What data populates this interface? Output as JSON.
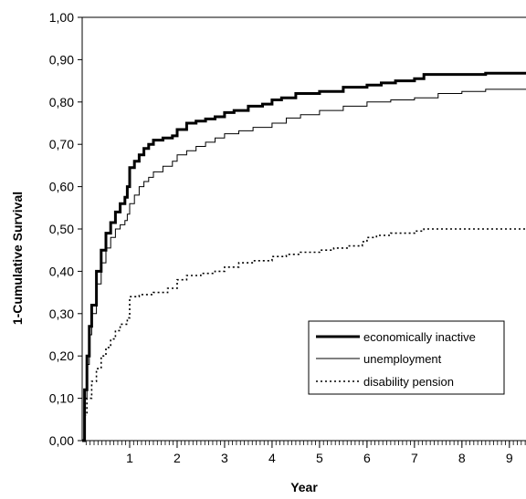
{
  "chart_data": {
    "type": "line",
    "title": "",
    "xlabel": "Year",
    "ylabel": "1-Cumulative Survival",
    "xlim": [
      0,
      9.35
    ],
    "ylim": [
      0,
      1.0
    ],
    "x_tick_values": [
      1,
      2,
      3,
      4,
      5,
      6,
      7,
      8,
      9
    ],
    "x_tick_labels": [
      "1",
      "2",
      "3",
      "4",
      "5",
      "6",
      "7",
      "8",
      "9"
    ],
    "y_tick_values": [
      0,
      0.1,
      0.2,
      0.3,
      0.4,
      0.5,
      0.6,
      0.7,
      0.8,
      0.9,
      1.0
    ],
    "y_tick_labels": [
      "0,00",
      "0,10",
      "0,20",
      "0,30",
      "0,40",
      "0,50",
      "0,60",
      "0,70",
      "0,80",
      "0,90",
      "1,00"
    ],
    "grid": false,
    "legend_position": "bottom-right",
    "series": [
      {
        "name": "economically inactive",
        "style": "thick-solid",
        "color": "#000000",
        "x": [
          0,
          0.05,
          0.1,
          0.15,
          0.2,
          0.3,
          0.4,
          0.5,
          0.6,
          0.7,
          0.8,
          0.9,
          0.95,
          1.0,
          1.1,
          1.2,
          1.3,
          1.4,
          1.5,
          1.7,
          1.9,
          2.0,
          2.2,
          2.4,
          2.6,
          2.8,
          3.0,
          3.2,
          3.5,
          3.8,
          4.0,
          4.2,
          4.5,
          5.0,
          5.5,
          6.0,
          6.3,
          6.6,
          7.0,
          7.2,
          7.5,
          8.0,
          8.5,
          9.0,
          9.35
        ],
        "y": [
          0,
          0.12,
          0.2,
          0.27,
          0.32,
          0.4,
          0.45,
          0.49,
          0.515,
          0.54,
          0.56,
          0.575,
          0.6,
          0.645,
          0.66,
          0.675,
          0.69,
          0.7,
          0.71,
          0.715,
          0.72,
          0.735,
          0.75,
          0.755,
          0.76,
          0.765,
          0.775,
          0.78,
          0.79,
          0.795,
          0.805,
          0.81,
          0.82,
          0.825,
          0.835,
          0.84,
          0.845,
          0.85,
          0.855,
          0.865,
          0.865,
          0.865,
          0.868,
          0.868,
          0.868
        ]
      },
      {
        "name": "unemployment",
        "style": "thin-solid",
        "color": "#000000",
        "x": [
          0,
          0.05,
          0.1,
          0.15,
          0.2,
          0.3,
          0.4,
          0.5,
          0.6,
          0.7,
          0.8,
          0.9,
          0.95,
          1.0,
          1.1,
          1.2,
          1.3,
          1.4,
          1.5,
          1.7,
          1.9,
          2.0,
          2.2,
          2.4,
          2.6,
          2.8,
          3.0,
          3.3,
          3.6,
          4.0,
          4.3,
          4.6,
          5.0,
          5.5,
          6.0,
          6.5,
          7.0,
          7.5,
          8.0,
          8.5,
          9.0,
          9.35
        ],
        "y": [
          0,
          0.1,
          0.18,
          0.25,
          0.3,
          0.37,
          0.42,
          0.455,
          0.48,
          0.5,
          0.51,
          0.52,
          0.535,
          0.56,
          0.58,
          0.6,
          0.612,
          0.622,
          0.635,
          0.648,
          0.66,
          0.675,
          0.685,
          0.695,
          0.705,
          0.715,
          0.725,
          0.732,
          0.74,
          0.75,
          0.762,
          0.77,
          0.78,
          0.79,
          0.8,
          0.805,
          0.81,
          0.82,
          0.825,
          0.83,
          0.83,
          0.83
        ]
      },
      {
        "name": "disability pension",
        "style": "dotted",
        "color": "#000000",
        "x": [
          0,
          0.05,
          0.1,
          0.2,
          0.3,
          0.4,
          0.5,
          0.6,
          0.7,
          0.8,
          0.95,
          1.0,
          1.2,
          1.5,
          1.8,
          2.0,
          2.2,
          2.5,
          2.8,
          3.0,
          3.3,
          3.6,
          4.0,
          4.3,
          4.6,
          5.0,
          5.3,
          5.6,
          5.9,
          6.0,
          6.2,
          6.5,
          6.8,
          7.0,
          7.2,
          7.5,
          8.0,
          8.5,
          9.0,
          9.35
        ],
        "y": [
          0,
          0.06,
          0.1,
          0.14,
          0.17,
          0.2,
          0.22,
          0.24,
          0.26,
          0.275,
          0.29,
          0.34,
          0.345,
          0.35,
          0.36,
          0.38,
          0.39,
          0.395,
          0.4,
          0.41,
          0.42,
          0.425,
          0.435,
          0.44,
          0.445,
          0.45,
          0.455,
          0.46,
          0.47,
          0.48,
          0.485,
          0.49,
          0.49,
          0.495,
          0.5,
          0.5,
          0.5,
          0.5,
          0.5,
          0.5
        ]
      }
    ]
  }
}
